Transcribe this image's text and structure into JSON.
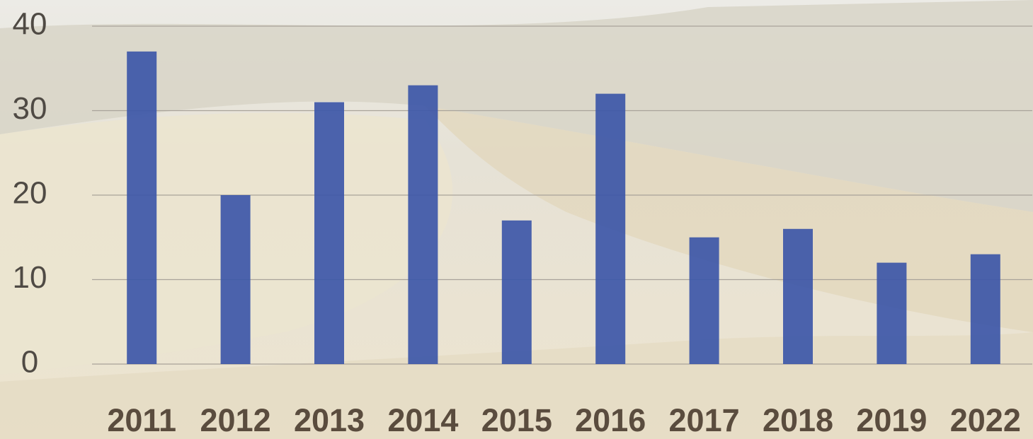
{
  "chart_data": {
    "type": "bar",
    "categories": [
      "2011",
      "2012",
      "2013",
      "2014",
      "2015",
      "2016",
      "2017",
      "2018",
      "2019",
      "2022"
    ],
    "values": [
      37,
      20,
      31,
      33,
      17,
      32,
      15,
      16,
      12,
      13
    ],
    "color": "#3d57a8",
    "ylim": [
      0,
      40
    ],
    "yticks": [
      0,
      10,
      20,
      30,
      40
    ],
    "grid": true
  }
}
